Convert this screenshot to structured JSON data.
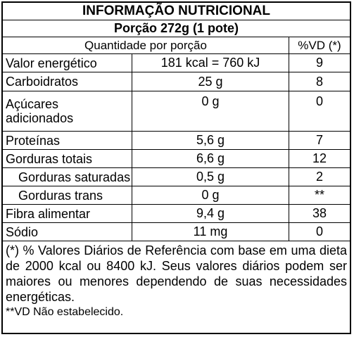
{
  "header": {
    "title": "INFORMAÇÃO  NUTRICIONAL",
    "portion": "Porção 272g (1 pote)",
    "col_quantity": "Quantidade por porção",
    "col_vd": "%VD (*)"
  },
  "rows": [
    {
      "name": "Valor energético",
      "qty": "181 kcal = 760 kJ",
      "vd": "9"
    },
    {
      "name": "Carboidratos",
      "qty": "25 g",
      "vd": "8"
    },
    {
      "name": "Açúcares adicionados",
      "qty": "0 g",
      "vd": "0"
    },
    {
      "name": "Proteínas",
      "qty": "5,6 g",
      "vd": "7"
    },
    {
      "name": "Gorduras totais",
      "qty": "6,6 g",
      "vd": "12"
    },
    {
      "name": "Gorduras saturadas",
      "qty": "0,5 g",
      "vd": "2"
    },
    {
      "name": "Gorduras trans",
      "qty": "0 g",
      "vd": "**"
    },
    {
      "name": "Fibra alimentar",
      "qty": "9,4 g",
      "vd": "38"
    },
    {
      "name": "Sódio",
      "qty": "11 mg",
      "vd": "0"
    }
  ],
  "footnote": {
    "main": "(*) % Valores Diários de Referência com base em uma dieta de 2000 kcal ou 8400 kJ. Seus valores diários podem ser maiores ou menores dependendo de suas necessidades energéticas.",
    "secondary": "**VD Não estabelecido."
  }
}
